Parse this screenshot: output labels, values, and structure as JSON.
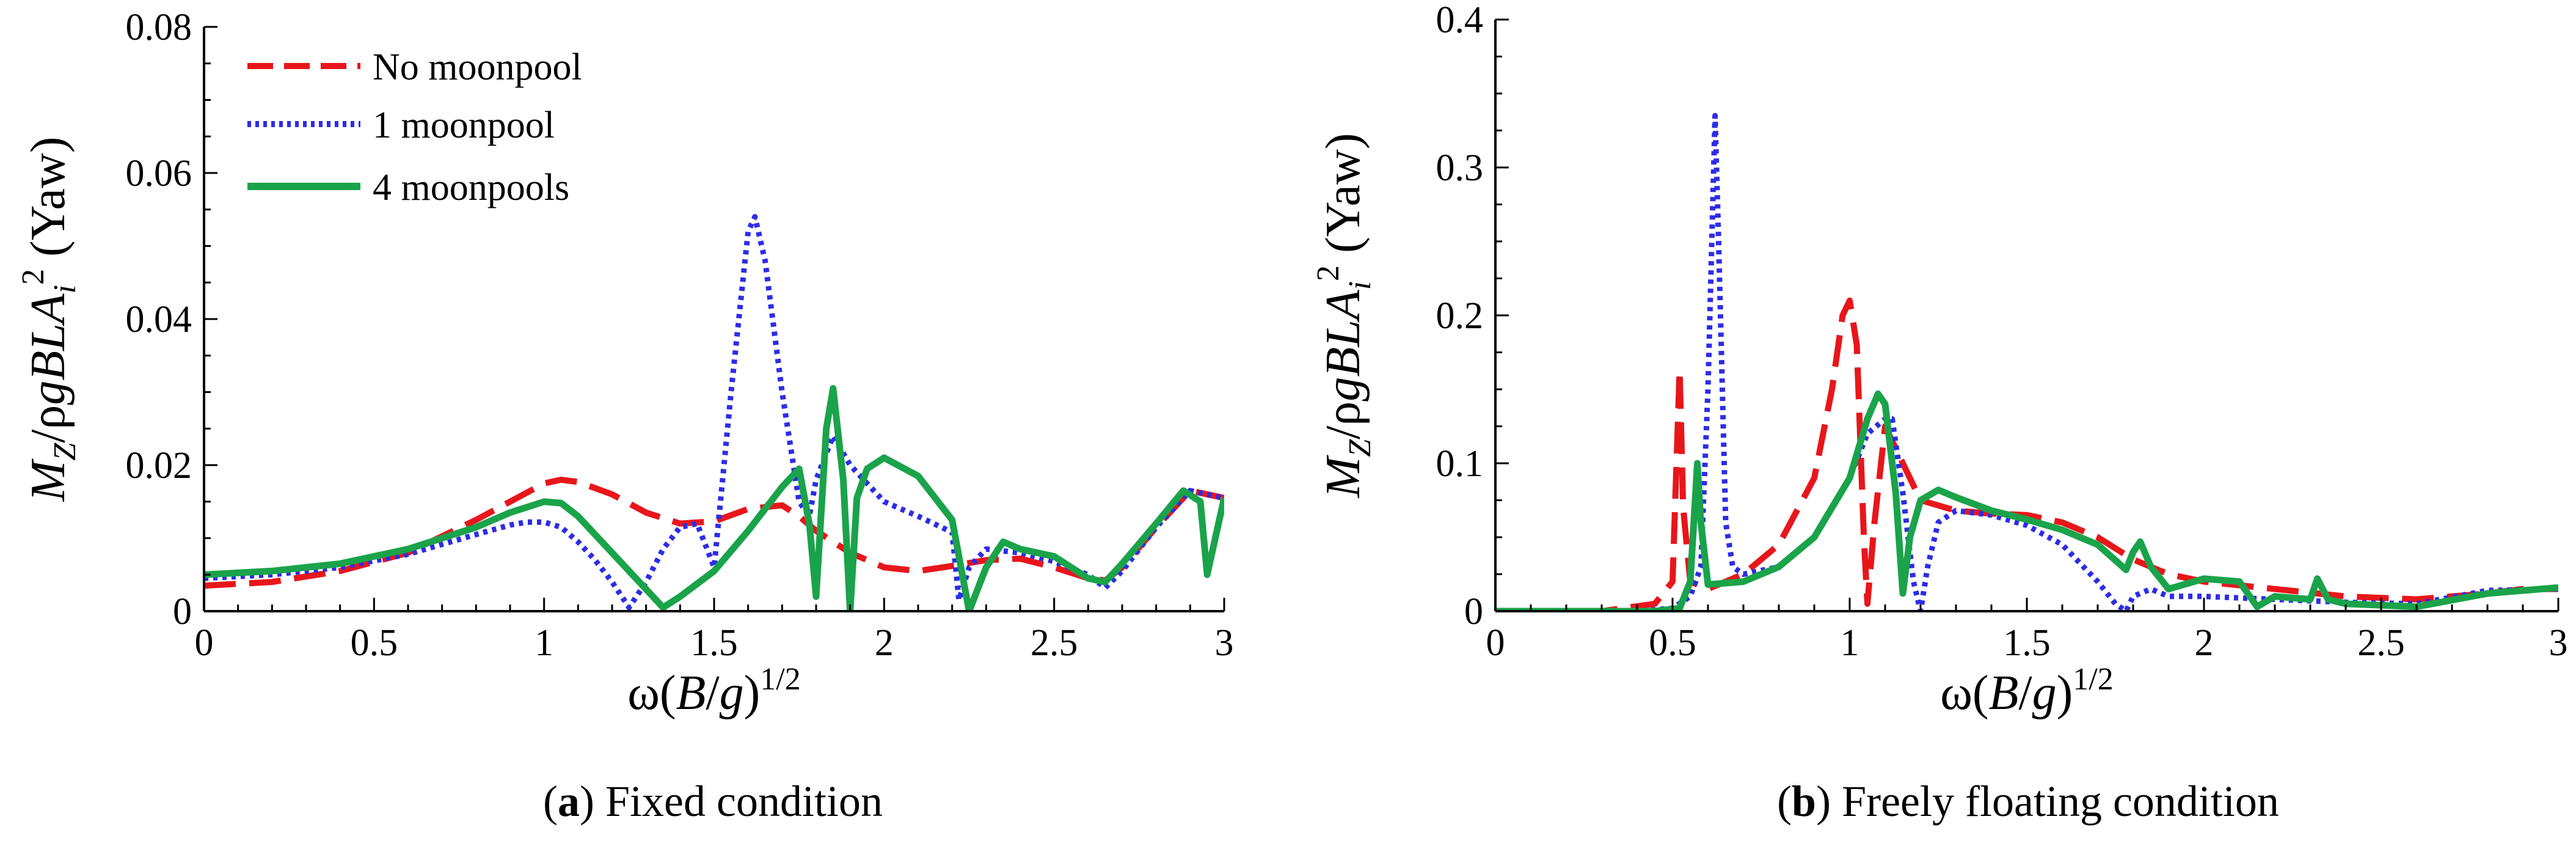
{
  "figure": {
    "caption_a": {
      "letter": "a",
      "text": " Fixed condition"
    },
    "caption_b": {
      "letter": "b",
      "text": " Freely floating condition"
    }
  },
  "legend": {
    "entries": [
      {
        "label": "No moonpool"
      },
      {
        "label": "1 moonpool"
      },
      {
        "label": "4 moonpools"
      }
    ]
  },
  "styles": {
    "no_moonpool": {
      "color": "#e8161b",
      "dash": "dashed"
    },
    "one_moonpool": {
      "color": "#2c2ce8",
      "dash": "dotted"
    },
    "four_moonpools": {
      "color": "#1aa34a",
      "dash": "solid"
    }
  },
  "chart_data": [
    {
      "type": "line",
      "panel": "a",
      "title": "(a) Fixed condition",
      "xlabel": "ω(B/g)^1/2",
      "ylabel": "M_Z/ρgBLA_i^2 (Yaw)",
      "xlim": [
        0,
        3
      ],
      "ylim": [
        0,
        0.08
      ],
      "xticks": [
        0,
        0.5,
        1,
        1.5,
        2,
        2.5,
        3
      ],
      "xtick_labels": [
        "0",
        "0.5",
        "1",
        "1.5",
        "2",
        "2.5",
        "3"
      ],
      "yticks": [
        0,
        0.02,
        0.04,
        0.06,
        0.08
      ],
      "ytick_labels": [
        "0",
        "0.02",
        "0.04",
        "0.06",
        "0.08"
      ],
      "legend_position": "top-left",
      "series": [
        {
          "name": "No moonpool",
          "key": "no_moonpool",
          "x": [
            0,
            0.2,
            0.4,
            0.6,
            0.8,
            0.9,
            1.0,
            1.05,
            1.1,
            1.2,
            1.3,
            1.4,
            1.5,
            1.6,
            1.7,
            1.75,
            1.8,
            1.9,
            2.0,
            2.1,
            2.2,
            2.3,
            2.4,
            2.5,
            2.6,
            2.65,
            2.7,
            2.8,
            2.9,
            2.95,
            3.0
          ],
          "y": [
            0.0035,
            0.004,
            0.0055,
            0.008,
            0.0125,
            0.015,
            0.0175,
            0.018,
            0.0177,
            0.016,
            0.0135,
            0.012,
            0.0123,
            0.014,
            0.0145,
            0.013,
            0.011,
            0.008,
            0.006,
            0.0055,
            0.0062,
            0.007,
            0.0072,
            0.006,
            0.0045,
            0.0042,
            0.006,
            0.0115,
            0.0165,
            0.016,
            0.0155
          ]
        },
        {
          "name": "1 moonpool",
          "key": "one_moonpool",
          "x": [
            0,
            0.2,
            0.4,
            0.6,
            0.8,
            0.9,
            0.95,
            1.0,
            1.05,
            1.1,
            1.15,
            1.2,
            1.25,
            1.3,
            1.35,
            1.4,
            1.45,
            1.5,
            1.55,
            1.6,
            1.62,
            1.65,
            1.7,
            1.75,
            1.78,
            1.8,
            1.85,
            1.9,
            2.0,
            2.1,
            2.2,
            2.22,
            2.25,
            2.3,
            2.4,
            2.5,
            2.6,
            2.65,
            2.7,
            2.8,
            2.9,
            2.95,
            3.0
          ],
          "y": [
            0.0045,
            0.005,
            0.006,
            0.0078,
            0.0105,
            0.0118,
            0.0122,
            0.0122,
            0.0115,
            0.0095,
            0.007,
            0.004,
            0.0005,
            0.004,
            0.0085,
            0.0115,
            0.012,
            0.006,
            0.03,
            0.052,
            0.054,
            0.048,
            0.03,
            0.015,
            0.013,
            0.018,
            0.024,
            0.02,
            0.015,
            0.013,
            0.0108,
            0.0015,
            0.006,
            0.0085,
            0.008,
            0.0068,
            0.005,
            0.0032,
            0.0055,
            0.0115,
            0.0165,
            0.016,
            0.0155
          ]
        },
        {
          "name": "4 moonpools",
          "key": "four_moonpools",
          "x": [
            0,
            0.2,
            0.4,
            0.6,
            0.8,
            0.9,
            1.0,
            1.05,
            1.1,
            1.2,
            1.3,
            1.35,
            1.4,
            1.5,
            1.6,
            1.7,
            1.75,
            1.78,
            1.8,
            1.83,
            1.85,
            1.88,
            1.9,
            1.92,
            1.95,
            2.0,
            2.1,
            2.2,
            2.25,
            2.3,
            2.35,
            2.4,
            2.5,
            2.6,
            2.65,
            2.7,
            2.8,
            2.88,
            2.93,
            2.95,
            3.0
          ],
          "y": [
            0.005,
            0.0055,
            0.0065,
            0.0085,
            0.0115,
            0.0135,
            0.015,
            0.0148,
            0.013,
            0.008,
            0.003,
            0.0005,
            0.002,
            0.0055,
            0.011,
            0.017,
            0.0195,
            0.012,
            0.002,
            0.025,
            0.0305,
            0.018,
            0.0,
            0.0155,
            0.0195,
            0.021,
            0.0185,
            0.0125,
            0.0,
            0.006,
            0.0095,
            0.0085,
            0.0075,
            0.0045,
            0.004,
            0.0065,
            0.012,
            0.0165,
            0.015,
            0.005,
            0.0155
          ]
        }
      ]
    },
    {
      "type": "line",
      "panel": "b",
      "title": "(b) Freely floating condition",
      "xlabel": "ω(B/g)^1/2",
      "ylabel": "M_Z/ρgBLA_i^2 (Yaw)",
      "xlim": [
        0,
        3
      ],
      "ylim": [
        0,
        0.4
      ],
      "xticks": [
        0,
        0.5,
        1,
        1.5,
        2,
        2.5,
        3
      ],
      "xtick_labels": [
        "0",
        "0.5",
        "1",
        "1.5",
        "2",
        "2.5",
        "3"
      ],
      "yticks": [
        0,
        0.1,
        0.2,
        0.3,
        0.4
      ],
      "ytick_labels": [
        "0",
        "0.1",
        "0.2",
        "0.3",
        "0.4"
      ],
      "series": [
        {
          "name": "No moonpool",
          "key": "no_moonpool",
          "x": [
            0,
            0.3,
            0.45,
            0.5,
            0.52,
            0.53,
            0.55,
            0.6,
            0.7,
            0.8,
            0.9,
            0.95,
            0.98,
            1.0,
            1.02,
            1.04,
            1.05,
            1.07,
            1.1,
            1.2,
            1.3,
            1.4,
            1.5,
            1.6,
            1.7,
            1.8,
            1.9,
            2.0,
            2.2,
            2.4,
            2.6,
            2.8,
            2.9,
            3.0
          ],
          "y": [
            0.0,
            0.0,
            0.005,
            0.02,
            0.163,
            0.07,
            0.02,
            0.015,
            0.025,
            0.045,
            0.09,
            0.15,
            0.2,
            0.21,
            0.18,
            0.05,
            0.005,
            0.06,
            0.125,
            0.075,
            0.068,
            0.066,
            0.065,
            0.06,
            0.05,
            0.035,
            0.025,
            0.02,
            0.015,
            0.01,
            0.008,
            0.012,
            0.015,
            0.015
          ]
        },
        {
          "name": "1 moonpool",
          "key": "one_moonpool",
          "x": [
            0,
            0.4,
            0.5,
            0.55,
            0.58,
            0.6,
            0.62,
            0.63,
            0.65,
            0.67,
            0.7,
            0.8,
            0.9,
            1.0,
            1.05,
            1.1,
            1.12,
            1.15,
            1.18,
            1.2,
            1.22,
            1.25,
            1.3,
            1.4,
            1.5,
            1.6,
            1.7,
            1.75,
            1.78,
            1.8,
            1.85,
            1.9,
            2.0,
            2.2,
            2.4,
            2.6,
            2.8,
            3.0
          ],
          "y": [
            0.0,
            0.0,
            0.002,
            0.01,
            0.03,
            0.15,
            0.335,
            0.25,
            0.06,
            0.03,
            0.025,
            0.03,
            0.05,
            0.09,
            0.12,
            0.13,
            0.13,
            0.08,
            0.02,
            0.0,
            0.03,
            0.06,
            0.068,
            0.065,
            0.058,
            0.045,
            0.02,
            0.005,
            0.0,
            0.01,
            0.015,
            0.01,
            0.01,
            0.008,
            0.006,
            0.005,
            0.014,
            0.015
          ]
        },
        {
          "name": "4 moonpools",
          "key": "four_moonpools",
          "x": [
            0,
            0.45,
            0.52,
            0.55,
            0.57,
            0.58,
            0.6,
            0.7,
            0.8,
            0.9,
            1.0,
            1.05,
            1.08,
            1.1,
            1.13,
            1.15,
            1.17,
            1.2,
            1.25,
            1.3,
            1.4,
            1.5,
            1.6,
            1.7,
            1.78,
            1.8,
            1.82,
            1.85,
            1.9,
            2.0,
            2.1,
            2.15,
            2.2,
            2.3,
            2.32,
            2.35,
            2.4,
            2.5,
            2.6,
            2.8,
            3.0
          ],
          "y": [
            0.0,
            0.0,
            0.002,
            0.02,
            0.1,
            0.06,
            0.018,
            0.02,
            0.03,
            0.05,
            0.09,
            0.13,
            0.147,
            0.14,
            0.08,
            0.012,
            0.05,
            0.075,
            0.082,
            0.077,
            0.068,
            0.062,
            0.055,
            0.045,
            0.028,
            0.04,
            0.047,
            0.03,
            0.015,
            0.022,
            0.02,
            0.003,
            0.01,
            0.008,
            0.022,
            0.008,
            0.005,
            0.004,
            0.003,
            0.012,
            0.016
          ]
        }
      ]
    }
  ]
}
